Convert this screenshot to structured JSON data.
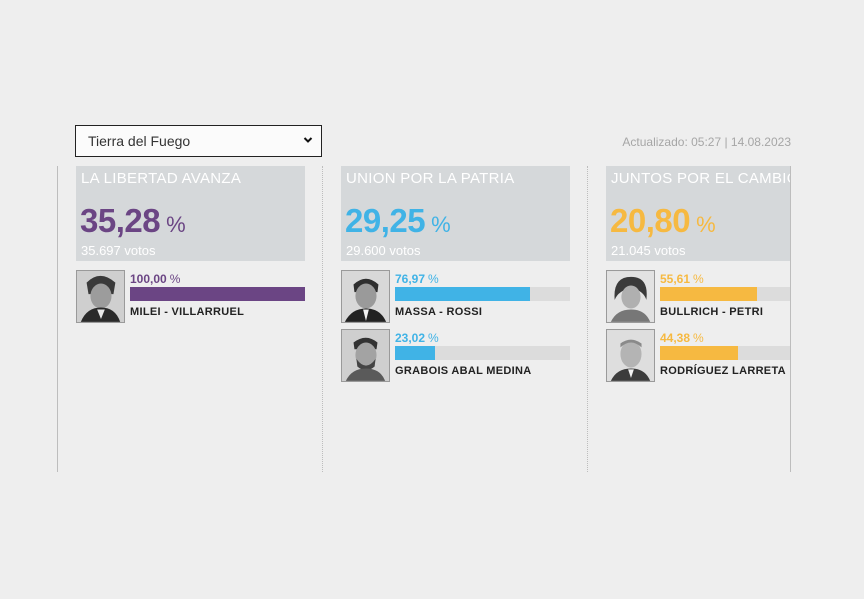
{
  "selector": {
    "value": "Tierra del Fuego",
    "icon": "chevron-down-icon"
  },
  "updated": "Actualizado: 05:27 | 14.08.2023",
  "parties": [
    {
      "name": "LA LIBERTAD AVANZA",
      "pct": "35,28",
      "pct_symbol": "%",
      "votes": "35.697 votos",
      "color": "#6b4584",
      "candidates": [
        {
          "name": "MILEI - VILLARRUEL",
          "pct": "100,00",
          "pct_symbol": "%",
          "share": 100
        }
      ]
    },
    {
      "name": "UNION POR LA PATRIA",
      "pct": "29,25",
      "pct_symbol": "%",
      "votes": "29.600 votos",
      "color": "#40b3e6",
      "candidates": [
        {
          "name": "MASSA - ROSSI",
          "pct": "76,97",
          "pct_symbol": "%",
          "share": 76.97
        },
        {
          "name": "GRABOIS    ABAL MEDINA",
          "pct": "23,02",
          "pct_symbol": "%",
          "share": 23.02
        }
      ]
    },
    {
      "name": "JUNTOS POR EL CAMBIO",
      "pct": "20,80",
      "pct_symbol": "%",
      "votes": "21.045 votos",
      "color": "#f6b941",
      "candidates": [
        {
          "name": "BULLRICH - PETRI",
          "pct": "55,61",
          "pct_symbol": "%",
          "share": 55.61
        },
        {
          "name": "RODRÍGUEZ LARRETA",
          "pct": "44,38",
          "pct_symbol": "%",
          "share": 44.38
        }
      ]
    }
  ]
}
